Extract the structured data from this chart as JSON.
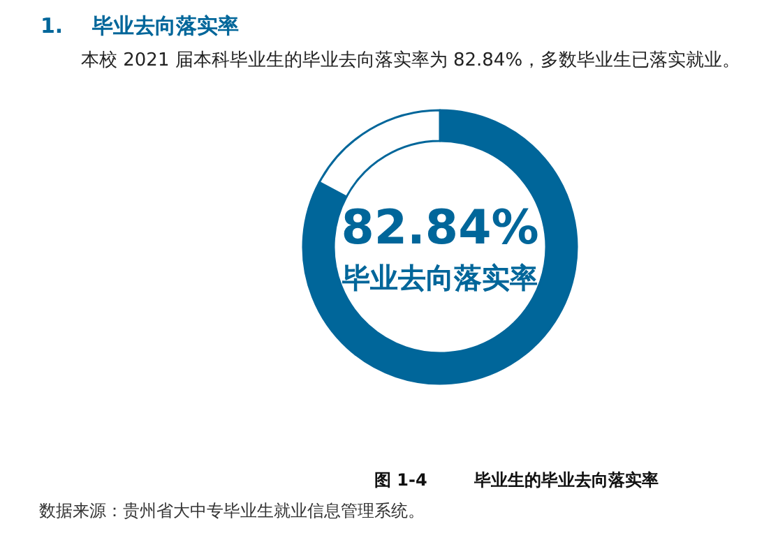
{
  "chart_data": {
    "type": "donut",
    "title": "1.    毕业去向落实率",
    "subtitle": "本校 2021 届本科毕业生的毕业去向落实率为 82.84%，多数毕业生已落实就业。",
    "categories": [
      "毕业去向落实率",
      null
    ],
    "values": [
      82.84,
      17.16
    ],
    "colors": [
      "#00669a",
      "#ffffff"
    ],
    "value_labels": [
      "82.84%",
      null
    ],
    "annotations": [
      "图 1-4        毕业生的毕业去向落实率",
      "数据来源：贵州省大中专毕业生就业信息管理系统。"
    ]
  }
}
